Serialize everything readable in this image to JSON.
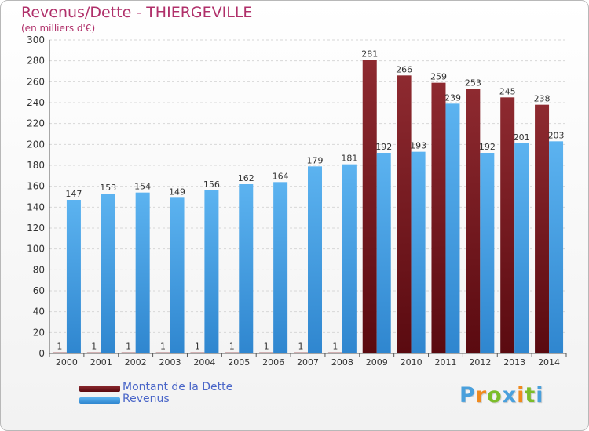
{
  "title": "Revenus/Dette - THIERGEVILLE",
  "subtitle": "(en milliers d'€)",
  "legend": {
    "debt": "Montant de la Dette",
    "revenue": "Revenus"
  },
  "brand": {
    "letters": [
      "P",
      "r",
      "o",
      "x",
      "i",
      "t",
      "i"
    ],
    "colors": [
      "#4aa0dc",
      "#f08a1e",
      "#7cbd2a",
      "#4aa0dc",
      "#f08a1e",
      "#7cbd2a",
      "#4aa0dc"
    ]
  },
  "colors": {
    "debt": "#7a1e22",
    "revenue": "#4fa6e8",
    "title": "#b0306a",
    "legend_text": "#4a66c8"
  },
  "chart_data": {
    "type": "bar",
    "categories": [
      "2000",
      "2001",
      "2002",
      "2003",
      "2004",
      "2005",
      "2006",
      "2007",
      "2008",
      "2009",
      "2010",
      "2011",
      "2012",
      "2013",
      "2014"
    ],
    "series": [
      {
        "name": "Montant de la Dette",
        "values": [
          1,
          1,
          1,
          1,
          1,
          1,
          1,
          1,
          1,
          281,
          266,
          259,
          253,
          245,
          238
        ]
      },
      {
        "name": "Revenus",
        "values": [
          147,
          153,
          154,
          149,
          156,
          162,
          164,
          179,
          181,
          192,
          193,
          239,
          192,
          201,
          203
        ]
      }
    ],
    "y_ticks": [
      0,
      20,
      40,
      60,
      80,
      100,
      120,
      140,
      160,
      180,
      200,
      220,
      240,
      260,
      280,
      300
    ],
    "ylim": [
      0,
      300
    ],
    "grid": true,
    "legend_position": "bottom-left"
  }
}
